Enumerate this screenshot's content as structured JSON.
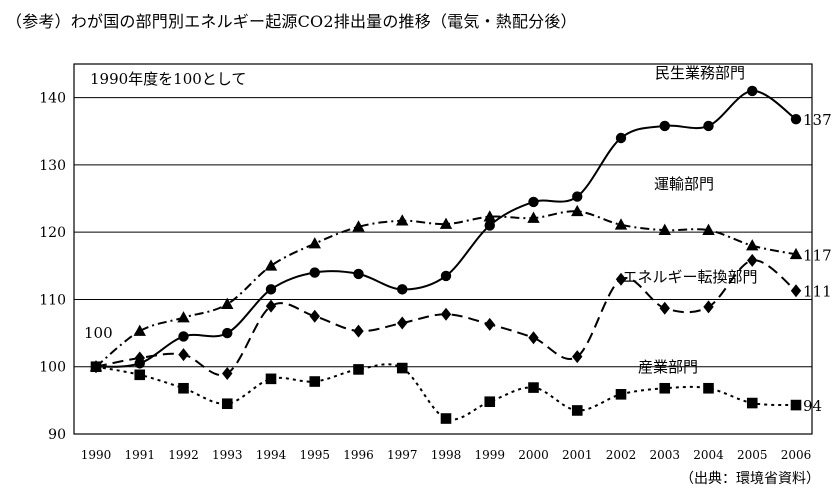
{
  "chart_data": {
    "type": "line",
    "title": "（参考）わが国の部門別エネルギー起源CO2排出量の推移（電気・熱配分後）",
    "note": "1990年度を100として",
    "source": "（出典：環境省資料）",
    "xlabel": "",
    "ylabel": "",
    "ylim": [
      90,
      145
    ],
    "yticks": [
      90,
      100,
      110,
      120,
      130,
      140
    ],
    "grid": "horizontal",
    "x": [
      "1990",
      "1991",
      "1992",
      "1993",
      "1994",
      "1995",
      "1996",
      "1997",
      "1998",
      "1999",
      "2000",
      "2001",
      "2002",
      "2003",
      "2004",
      "2005",
      "2006"
    ],
    "start_label": "100",
    "series": [
      {
        "name": "民生業務部門",
        "marker": "circle",
        "dash": "solid",
        "values": [
          100,
          100.5,
          104.5,
          105,
          111.5,
          114,
          113.8,
          111.5,
          113.5,
          121,
          124.5,
          125.3,
          134,
          135.8,
          135.8,
          141,
          136.8
        ],
        "end_label": "137"
      },
      {
        "name": "運輸部門",
        "marker": "triangle",
        "dash": "dashdot",
        "values": [
          100,
          105.3,
          107.3,
          109.3,
          115,
          118.3,
          120.8,
          121.7,
          121.2,
          122.3,
          122.1,
          123.1,
          121.1,
          120.3,
          120.3,
          118,
          116.7
        ],
        "end_label": "117"
      },
      {
        "name": "エネルギー転換部門",
        "marker": "diamond",
        "dash": "dash",
        "values": [
          100,
          101.3,
          101.8,
          99,
          109,
          107.5,
          105.3,
          106.5,
          107.8,
          106.3,
          104.3,
          101.5,
          113,
          108.7,
          108.9,
          115.8,
          111.3
        ],
        "end_label": "111"
      },
      {
        "name": "産業部門",
        "marker": "square",
        "dash": "dot",
        "values": [
          100,
          98.8,
          96.8,
          94.5,
          98.2,
          97.8,
          99.6,
          99.8,
          92.3,
          94.8,
          96.9,
          93.5,
          95.9,
          96.8,
          96.8,
          94.6,
          94.3
        ],
        "end_label": "94"
      }
    ]
  }
}
